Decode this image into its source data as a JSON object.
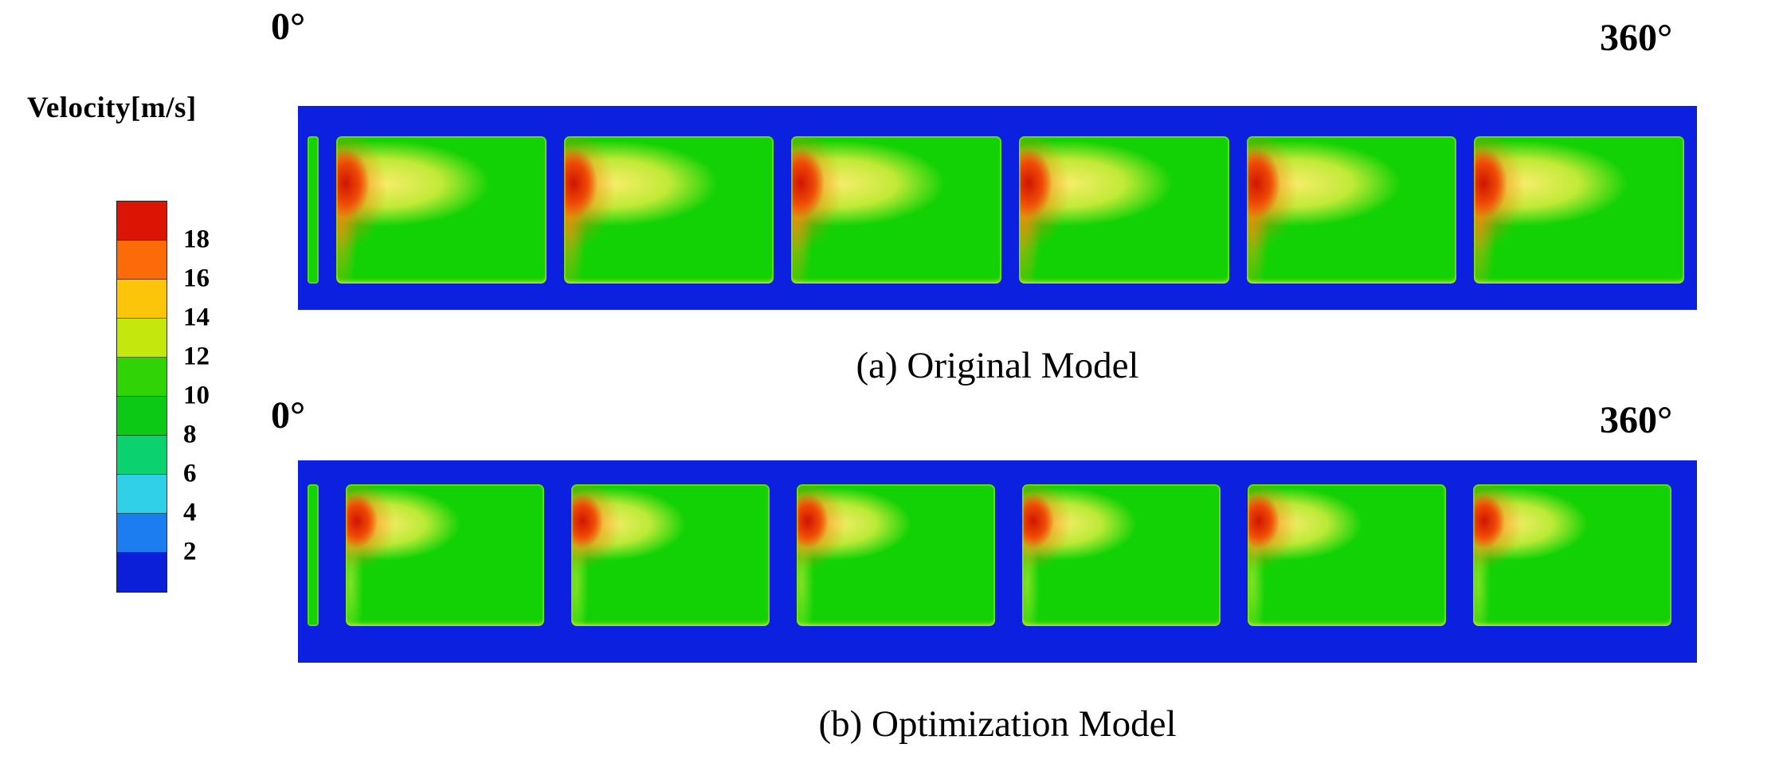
{
  "figure": {
    "colorbar": {
      "title": "Velocity[m/s]",
      "tick_labels": [
        "18",
        "16",
        "14",
        "12",
        "10",
        "8",
        "6",
        "4",
        "2"
      ],
      "band_colors": [
        "#dc1404",
        "#fb6b07",
        "#fcc50a",
        "#c4e80d",
        "#2fd306",
        "#0cc915",
        "#0bd16e",
        "#2fd0e8",
        "#1b7df0",
        "#0b1fd8"
      ]
    },
    "panels": [
      {
        "id": "a",
        "left_label": "0°",
        "right_label": "360°",
        "caption": "(a) Original Model",
        "cells": 6
      },
      {
        "id": "b",
        "left_label": "0°",
        "right_label": "360°",
        "caption": "(b) Optimization Model",
        "cells": 6
      }
    ]
  },
  "chart_data": {
    "type": "heatmap",
    "colorbar": {
      "label": "Velocity[m/s]",
      "tick_values": [
        18,
        16,
        14,
        12,
        10,
        8,
        6,
        4,
        2
      ],
      "value_range": [
        0,
        20
      ],
      "band_colors_top_to_bottom": [
        "#dc1404",
        "#fb6b07",
        "#fcc50a",
        "#c4e80d",
        "#2fd306",
        "#0cc915",
        "#0bd16e",
        "#2fd0e8",
        "#1b7df0",
        "#0b1fd8"
      ]
    },
    "x_axis": {
      "label_left": "0°",
      "label_right": "360°",
      "range_deg": [
        0,
        360
      ]
    },
    "panels": [
      {
        "caption": "(a) Original Model",
        "n_cells": 6,
        "background_velocity_mps": 10,
        "gap_and_border_velocity_mps": 2,
        "peak_velocity_mps": 19,
        "peak_pattern": "red/orange core at left edge of each cell with long yellow plume extending right, upper third of cell"
      },
      {
        "caption": "(b) Optimization Model",
        "n_cells": 6,
        "background_velocity_mps": 10,
        "gap_and_border_velocity_mps": 2,
        "peak_velocity_mps": 18,
        "peak_pattern": "smaller red/orange core at upper-left of each cell with shorter yellow plume than original model"
      }
    ]
  }
}
